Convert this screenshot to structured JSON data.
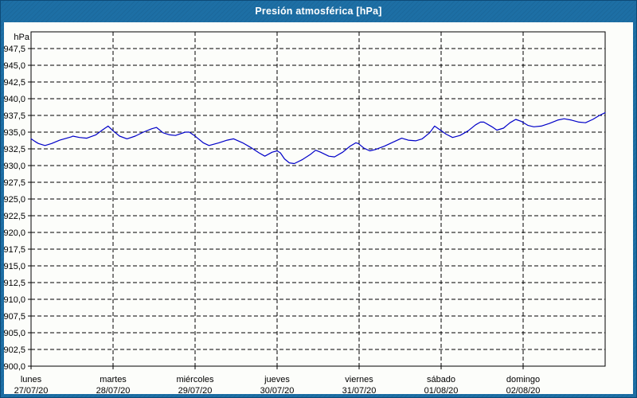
{
  "colors": {
    "frame": "#1d6fa5",
    "frame_edge": "#0d4a77",
    "content_bg": "#fcfdfa",
    "title_text": "#ffffff",
    "grid": "#000000",
    "text": "#000000",
    "line": "#0000c8"
  },
  "chart_data": {
    "type": "line",
    "title": "Presión atmosférica [hPa]",
    "unit_label": "hPa",
    "ylim": [
      900,
      950
    ],
    "y_gridline_step": 2.5,
    "grid": true,
    "grid_style": "dashed",
    "legend_position": "none",
    "y_tick_labels": [
      "947,5",
      "945,0",
      "942,5",
      "940,0",
      "937,5",
      "935,0",
      "932,5",
      "930,0",
      "927,5",
      "925,0",
      "922,5",
      "920,0",
      "917,5",
      "915,0",
      "912,5",
      "910,0",
      "907,5",
      "905,0",
      "902,5",
      "900,0"
    ],
    "x_axis": {
      "xlim_days": [
        0,
        7
      ],
      "days": [
        {
          "name": "lunes",
          "date": "27/07/20"
        },
        {
          "name": "martes",
          "date": "28/07/20"
        },
        {
          "name": "miércoles",
          "date": "29/07/20"
        },
        {
          "name": "jueves",
          "date": "30/07/20"
        },
        {
          "name": "viernes",
          "date": "31/07/20"
        },
        {
          "name": "sábado",
          "date": "01/08/20"
        },
        {
          "name": "domingo",
          "date": "02/08/20"
        }
      ]
    },
    "series": [
      {
        "name": "Presión atmosférica",
        "color": "#0000c8",
        "points": [
          [
            0.0,
            934.0
          ],
          [
            0.05,
            933.6
          ],
          [
            0.09,
            933.3
          ],
          [
            0.17,
            933.0
          ],
          [
            0.25,
            933.3
          ],
          [
            0.35,
            933.8
          ],
          [
            0.49,
            934.3
          ],
          [
            0.51,
            934.4
          ],
          [
            0.59,
            934.2
          ],
          [
            0.68,
            934.1
          ],
          [
            0.79,
            934.6
          ],
          [
            0.88,
            935.4
          ],
          [
            0.94,
            935.9
          ],
          [
            1.0,
            935.2
          ],
          [
            1.08,
            934.4
          ],
          [
            1.17,
            934.0
          ],
          [
            1.27,
            934.4
          ],
          [
            1.37,
            935.0
          ],
          [
            1.47,
            935.5
          ],
          [
            1.53,
            935.7
          ],
          [
            1.61,
            934.9
          ],
          [
            1.69,
            934.6
          ],
          [
            1.76,
            934.5
          ],
          [
            1.88,
            935.0
          ],
          [
            1.93,
            935.0
          ],
          [
            1.99,
            934.5
          ],
          [
            2.1,
            933.4
          ],
          [
            2.17,
            933.0
          ],
          [
            2.29,
            933.4
          ],
          [
            2.39,
            933.8
          ],
          [
            2.47,
            934.0
          ],
          [
            2.58,
            933.4
          ],
          [
            2.68,
            932.7
          ],
          [
            2.78,
            931.9
          ],
          [
            2.85,
            931.4
          ],
          [
            2.94,
            932.0
          ],
          [
            3.0,
            932.2
          ],
          [
            3.04,
            931.9
          ],
          [
            3.09,
            931.0
          ],
          [
            3.15,
            930.4
          ],
          [
            3.21,
            930.3
          ],
          [
            3.31,
            930.9
          ],
          [
            3.41,
            931.7
          ],
          [
            3.47,
            932.3
          ],
          [
            3.53,
            932.0
          ],
          [
            3.63,
            931.4
          ],
          [
            3.7,
            931.3
          ],
          [
            3.8,
            932.0
          ],
          [
            3.89,
            932.9
          ],
          [
            3.96,
            933.4
          ],
          [
            3.99,
            933.3
          ],
          [
            4.06,
            932.6
          ],
          [
            4.13,
            932.2
          ],
          [
            4.2,
            932.4
          ],
          [
            4.31,
            932.9
          ],
          [
            4.43,
            933.6
          ],
          [
            4.52,
            934.1
          ],
          [
            4.6,
            933.8
          ],
          [
            4.69,
            933.7
          ],
          [
            4.77,
            934.0
          ],
          [
            4.86,
            934.9
          ],
          [
            4.92,
            935.9
          ],
          [
            4.98,
            935.4
          ],
          [
            5.06,
            934.7
          ],
          [
            5.14,
            934.2
          ],
          [
            5.23,
            934.5
          ],
          [
            5.33,
            935.2
          ],
          [
            5.42,
            936.1
          ],
          [
            5.48,
            936.5
          ],
          [
            5.52,
            936.5
          ],
          [
            5.62,
            935.8
          ],
          [
            5.68,
            935.3
          ],
          [
            5.76,
            935.6
          ],
          [
            5.84,
            936.4
          ],
          [
            5.91,
            936.9
          ],
          [
            5.98,
            936.6
          ],
          [
            6.06,
            936.0
          ],
          [
            6.13,
            935.8
          ],
          [
            6.22,
            935.9
          ],
          [
            6.32,
            936.3
          ],
          [
            6.42,
            936.8
          ],
          [
            6.5,
            937.0
          ],
          [
            6.59,
            936.8
          ],
          [
            6.68,
            936.5
          ],
          [
            6.76,
            936.4
          ],
          [
            6.85,
            936.9
          ],
          [
            6.93,
            937.5
          ],
          [
            7.0,
            937.9
          ]
        ]
      }
    ]
  }
}
